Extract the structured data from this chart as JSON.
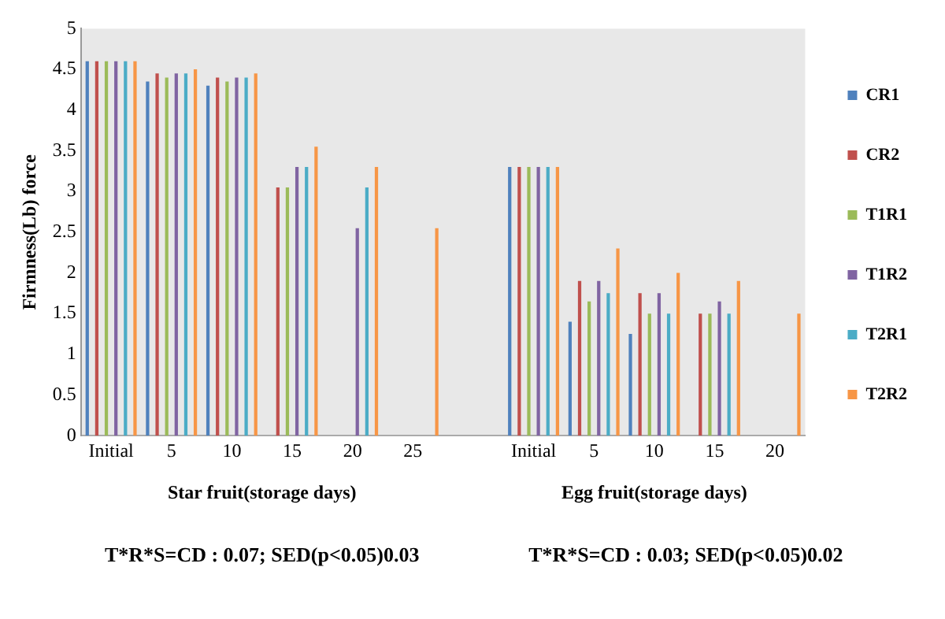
{
  "chart_data": {
    "type": "bar",
    "ylabel": "Firmness(Lb) force",
    "categories": [
      "Initial",
      "5",
      "10",
      "15",
      "20",
      "25",
      null,
      "Initial",
      "5",
      "10",
      "15",
      "20"
    ],
    "series": [
      {
        "name": "CR1",
        "color": "#4f81bd",
        "values": [
          4.6,
          4.35,
          4.3,
          0,
          0,
          0,
          0,
          3.3,
          1.4,
          1.25,
          0,
          0
        ]
      },
      {
        "name": "CR2",
        "color": "#c0504d",
        "values": [
          4.6,
          4.45,
          4.4,
          3.05,
          0,
          0,
          0,
          3.3,
          1.9,
          1.75,
          1.5,
          0
        ]
      },
      {
        "name": "T1R1",
        "color": "#9bbb59",
        "values": [
          4.6,
          4.4,
          4.35,
          3.05,
          0,
          0,
          0,
          3.3,
          1.65,
          1.5,
          1.5,
          0
        ]
      },
      {
        "name": "T1R2",
        "color": "#8064a2",
        "values": [
          4.6,
          4.45,
          4.4,
          3.3,
          2.55,
          0,
          0,
          3.3,
          1.9,
          1.75,
          1.65,
          0
        ]
      },
      {
        "name": "T2R1",
        "color": "#4bacc6",
        "values": [
          4.6,
          4.45,
          4.4,
          3.3,
          3.05,
          0,
          0,
          3.3,
          1.75,
          1.5,
          1.5,
          0
        ]
      },
      {
        "name": "T2R2",
        "color": "#f79646",
        "values": [
          4.6,
          4.5,
          4.45,
          3.55,
          3.3,
          2.55,
          0,
          3.3,
          2.3,
          2.0,
          1.9,
          1.5
        ]
      }
    ],
    "ylim": [
      0,
      5
    ],
    "yticks": [
      0,
      0.5,
      1,
      1.5,
      2,
      2.5,
      3,
      3.5,
      4,
      4.5,
      5
    ],
    "grid": false,
    "legend": "right",
    "annotations": [
      "Star fruit(storage days)",
      "Egg fruit(storage days)",
      "T*R*S=CD : 0.07; SED(p<0.05)0.03",
      "T*R*S=CD : 0.03; SED(p<0.05)0.02"
    ]
  }
}
